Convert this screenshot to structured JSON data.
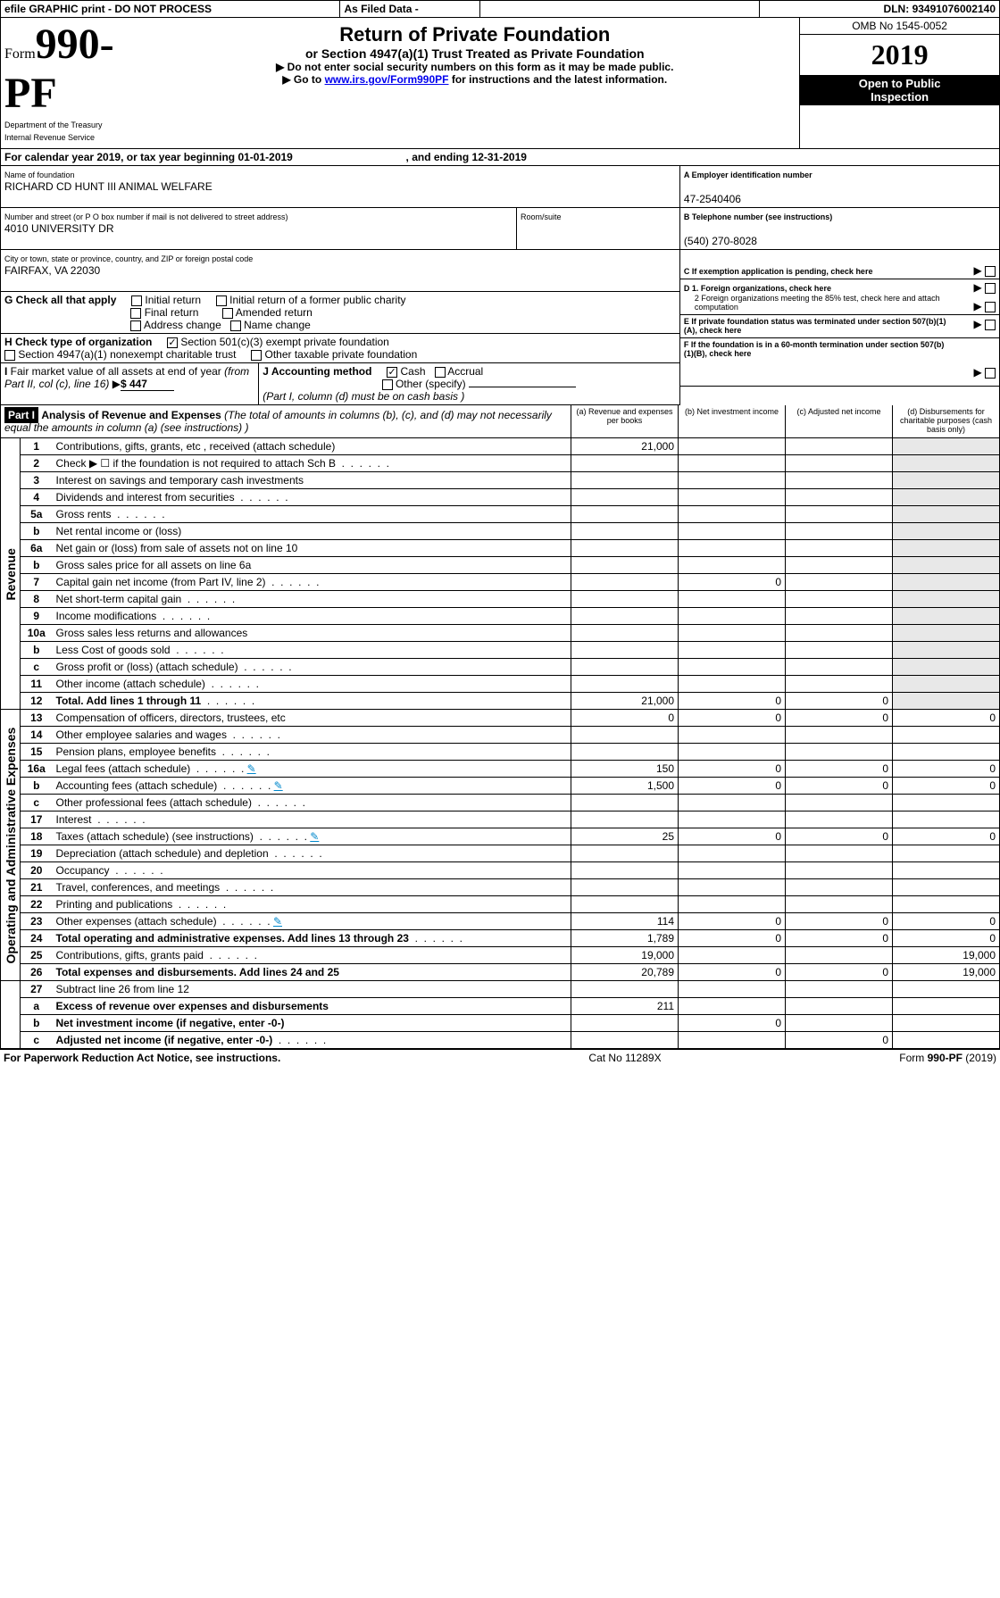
{
  "topbar": {
    "efile": "efile GRAPHIC print - DO NOT PROCESS",
    "asfiled": "As Filed Data -",
    "dln_label": "DLN:",
    "dln": "93491076002140"
  },
  "header": {
    "form_prefix": "Form",
    "form_number": "990-PF",
    "dept": "Department of the Treasury\nInternal Revenue Service",
    "title": "Return of Private Foundation",
    "subtitle": "or Section 4947(a)(1) Trust Treated as Private Foundation",
    "warn1": "▶ Do not enter social security numbers on this form as it may be made public.",
    "warn2_pre": "▶ Go to ",
    "warn2_link": "www.irs.gov/Form990PF",
    "warn2_post": " for instructions and the latest information.",
    "omb": "OMB No 1545-0052",
    "year": "2019",
    "open": "Open to Public\nInspection"
  },
  "cal": {
    "pre": "For calendar year 2019, or tax year beginning ",
    "begin": "01-01-2019",
    "mid": " , and ending ",
    "end": "12-31-2019"
  },
  "id": {
    "name_label": "Name of foundation",
    "name": "RICHARD CD HUNT III ANIMAL WELFARE",
    "addr_label": "Number and street (or P O  box number if mail is not delivered to street address)",
    "addr": "4010 UNIVERSITY DR",
    "room_label": "Room/suite",
    "room": "",
    "city_label": "City or town, state or province, country, and ZIP or foreign postal code",
    "city": "FAIRFAX, VA  22030",
    "A_label": "A Employer identification number",
    "A": "47-2540406",
    "B_label": "B Telephone number (see instructions)",
    "B": "(540) 270-8028",
    "C": "C If exemption application is pending, check here"
  },
  "G": {
    "label": "G Check all that apply",
    "opts": [
      "Initial return",
      "Initial return of a former public charity",
      "Final return",
      "Amended return",
      "Address change",
      "Name change"
    ]
  },
  "H": {
    "label": "H Check type of organization",
    "opt1": "Section 501(c)(3) exempt private foundation",
    "opt2": "Section 4947(a)(1) nonexempt charitable trust",
    "opt3": "Other taxable private foundation"
  },
  "D": {
    "d1": "D 1. Foreign organizations, check here",
    "d2": "2  Foreign organizations meeting the 85% test, check here and attach computation"
  },
  "E": "E  If private foundation status was terminated under section 507(b)(1)(A), check here",
  "F": "F  If the foundation is in a 60-month termination under section 507(b)(1)(B), check here",
  "I": {
    "label": "I Fair market value of all assets at end of year (from Part II, col  (c), line 16)  ▶",
    "value": "$  447"
  },
  "J": {
    "label": "J Accounting method",
    "cash": "Cash",
    "accrual": "Accrual",
    "other": "Other (specify)",
    "note": "(Part I, column (d) must be on cash basis )"
  },
  "part1": {
    "tag": "Part I",
    "title": "Analysis of Revenue and Expenses",
    "note": "(The total of amounts in columns (b), (c), and (d) may not necessarily equal the amounts in column (a) (see instructions) )",
    "cols": {
      "a": "(a)  Revenue and expenses per books",
      "b": "(b)  Net investment income",
      "c": "(c)  Adjusted net income",
      "d": "(d)  Disbursements for charitable purposes (cash basis only)"
    }
  },
  "rows": [
    {
      "num": "1",
      "label": "Contributions, gifts, grants, etc , received (attach schedule)",
      "a": "21,000",
      "b": "",
      "c": "",
      "d": ""
    },
    {
      "num": "2",
      "label": "Check ▶ ☐ if the foundation is not required to attach Sch  B",
      "dots": true
    },
    {
      "num": "3",
      "label": "Interest on savings and temporary cash investments"
    },
    {
      "num": "4",
      "label": "Dividends and interest from securities",
      "dots": true
    },
    {
      "num": "5a",
      "label": "Gross rents",
      "dots": true
    },
    {
      "num": "b",
      "label": "Net rental income or (loss)",
      "underline": true
    },
    {
      "num": "6a",
      "label": "Net gain or (loss) from sale of assets not on line 10"
    },
    {
      "num": "b",
      "label": "Gross sales price for all assets on line 6a",
      "underline": true
    },
    {
      "num": "7",
      "label": "Capital gain net income (from Part IV, line 2)",
      "dots": true,
      "b": "0"
    },
    {
      "num": "8",
      "label": "Net short-term capital gain",
      "dots": true
    },
    {
      "num": "9",
      "label": "Income modifications",
      "dots": true
    },
    {
      "num": "10a",
      "label": "Gross sales less returns and allowances",
      "underline": true
    },
    {
      "num": "b",
      "label": "Less  Cost of goods sold",
      "dots": true,
      "underline": true
    },
    {
      "num": "c",
      "label": "Gross profit or (loss) (attach schedule)",
      "dots": true
    },
    {
      "num": "11",
      "label": "Other income (attach schedule)",
      "dots": true
    },
    {
      "num": "12",
      "label": "Total. Add lines 1 through 11",
      "dots": true,
      "bold": true,
      "a": "21,000",
      "b": "0",
      "c": "0"
    }
  ],
  "exp_rows": [
    {
      "num": "13",
      "label": "Compensation of officers, directors, trustees, etc",
      "a": "0",
      "b": "0",
      "c": "0",
      "d": "0"
    },
    {
      "num": "14",
      "label": "Other employee salaries and wages",
      "dots": true
    },
    {
      "num": "15",
      "label": "Pension plans, employee benefits",
      "dots": true
    },
    {
      "num": "16a",
      "label": "Legal fees (attach schedule)",
      "dots": true,
      "link": true,
      "a": "150",
      "b": "0",
      "c": "0",
      "d": "0"
    },
    {
      "num": "b",
      "label": "Accounting fees (attach schedule)",
      "dots": true,
      "link": true,
      "a": "1,500",
      "b": "0",
      "c": "0",
      "d": "0"
    },
    {
      "num": "c",
      "label": "Other professional fees (attach schedule)",
      "dots": true
    },
    {
      "num": "17",
      "label": "Interest",
      "dots": true
    },
    {
      "num": "18",
      "label": "Taxes (attach schedule) (see instructions)",
      "dots": true,
      "link": true,
      "a": "25",
      "b": "0",
      "c": "0",
      "d": "0"
    },
    {
      "num": "19",
      "label": "Depreciation (attach schedule) and depletion",
      "dots": true
    },
    {
      "num": "20",
      "label": "Occupancy",
      "dots": true
    },
    {
      "num": "21",
      "label": "Travel, conferences, and meetings",
      "dots": true
    },
    {
      "num": "22",
      "label": "Printing and publications",
      "dots": true
    },
    {
      "num": "23",
      "label": "Other expenses (attach schedule)",
      "dots": true,
      "link": true,
      "a": "114",
      "b": "0",
      "c": "0",
      "d": "0"
    },
    {
      "num": "24",
      "label": "Total operating and administrative expenses. Add lines 13 through 23",
      "dots": true,
      "bold": true,
      "a": "1,789",
      "b": "0",
      "c": "0",
      "d": "0"
    },
    {
      "num": "25",
      "label": "Contributions, gifts, grants paid",
      "dots": true,
      "a": "19,000",
      "b": "",
      "c": "",
      "d": "19,000"
    },
    {
      "num": "26",
      "label": "Total expenses and disbursements. Add lines 24 and 25",
      "bold": true,
      "a": "20,789",
      "b": "0",
      "c": "0",
      "d": "19,000"
    }
  ],
  "net_rows": [
    {
      "num": "27",
      "label": "Subtract line 26 from line 12"
    },
    {
      "num": "a",
      "label": "Excess of revenue over expenses and disbursements",
      "bold": true,
      "a": "211"
    },
    {
      "num": "b",
      "label": "Net investment income (if negative, enter -0-)",
      "bold": true,
      "b": "0"
    },
    {
      "num": "c",
      "label": "Adjusted net income (if negative, enter -0-)",
      "dots": true,
      "bold": true,
      "c": "0"
    }
  ],
  "sidebar": {
    "rev": "Revenue",
    "exp": "Operating and Administrative Expenses"
  },
  "footer": {
    "left": "For Paperwork Reduction Act Notice, see instructions.",
    "mid": "Cat  No  11289X",
    "right": "Form 990-PF (2019)"
  }
}
